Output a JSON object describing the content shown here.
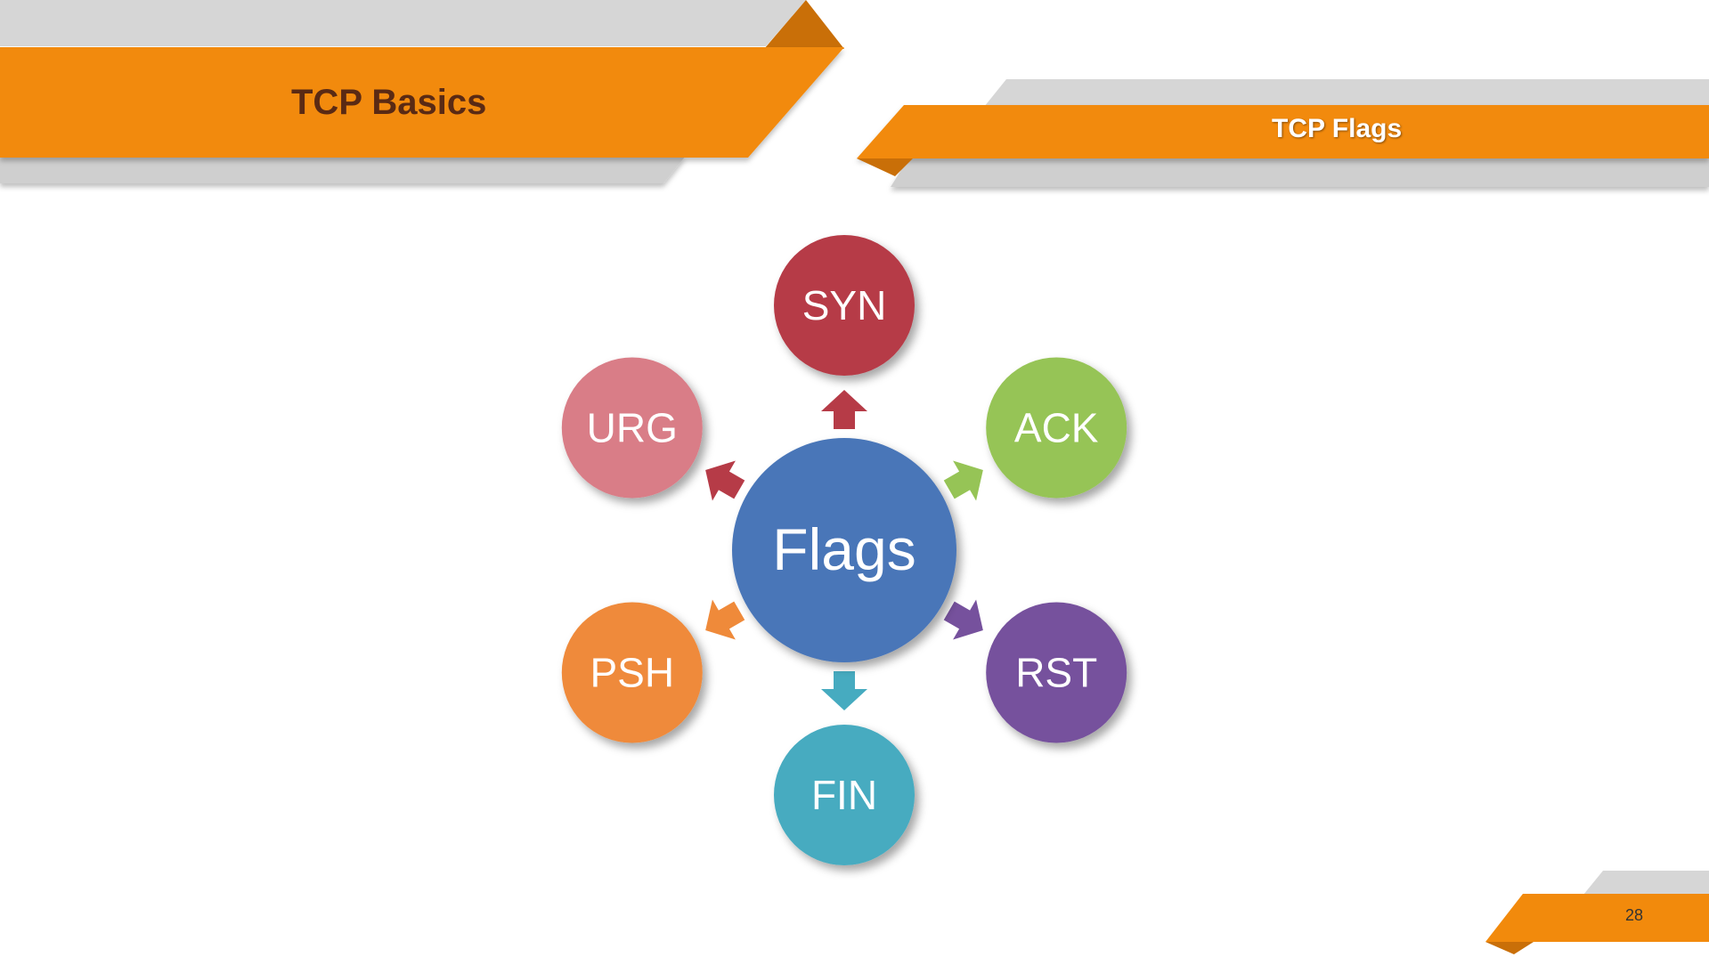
{
  "slide": {
    "main_title": "TCP Basics",
    "section_title": "TCP Flags",
    "page_number": "28"
  },
  "colors": {
    "banner_orange": "#f28a0c",
    "banner_gray": "#d6d6d6",
    "banner_shadow": "#9a9a9a"
  },
  "diagram": {
    "center": {
      "label": "Flags",
      "color": "#4a76b8"
    },
    "nodes": [
      {
        "label": "SYN",
        "color": "#b63b47"
      },
      {
        "label": "ACK",
        "color": "#96c456"
      },
      {
        "label": "RST",
        "color": "#76519d"
      },
      {
        "label": "FIN",
        "color": "#46abc0"
      },
      {
        "label": "PSH",
        "color": "#ef8a3a"
      },
      {
        "label": "URG",
        "color": "#d97d87"
      }
    ],
    "arrow_colors": [
      "#b63b47",
      "#96c456",
      "#76519d",
      "#46abc0",
      "#ef8a3a",
      "#b63b47"
    ]
  }
}
